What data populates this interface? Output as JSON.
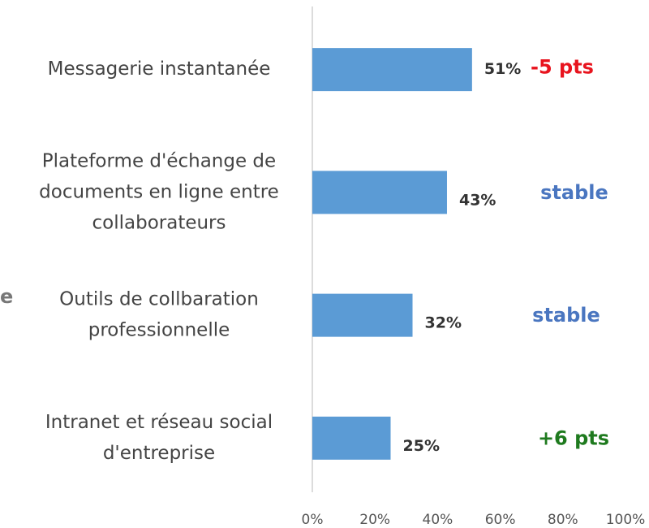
{
  "chart_data": {
    "type": "bar",
    "orientation": "horizontal",
    "categories": [
      [
        "Messagerie instantanée"
      ],
      [
        "Plateforme d'échange de",
        "documents en ligne entre",
        "collaborateurs"
      ],
      [
        "Outils de collbaration",
        "professionnelle"
      ],
      [
        "Intranet et réseau social",
        "d'entreprise"
      ]
    ],
    "values": [
      51,
      43,
      32,
      25
    ],
    "value_labels": [
      "51%",
      "43%",
      "32%",
      "25%"
    ],
    "color": "#5b9bd5",
    "annotations": [
      {
        "text": "-5 pts",
        "color": "#e8141e"
      },
      {
        "text": "stable",
        "color": "#4a76c0"
      },
      {
        "text": "stable",
        "color": "#4a76c0"
      },
      {
        "text": "+6 pts",
        "color": "#1e7a1e"
      }
    ],
    "partial_text": "e",
    "xlim": [
      0,
      100
    ],
    "xticks": [
      {
        "value": 0,
        "label": "0%"
      },
      {
        "value": 20,
        "label": "20%"
      },
      {
        "value": 40,
        "label": "40%"
      },
      {
        "value": 60,
        "label": "60%"
      },
      {
        "value": 80,
        "label": "80%"
      },
      {
        "value": 100,
        "label": "100%"
      }
    ]
  }
}
